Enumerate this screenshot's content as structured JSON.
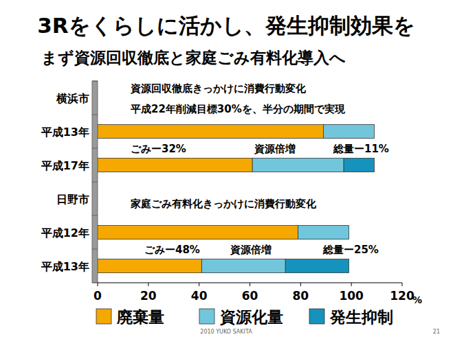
{
  "chart_data": {
    "type": "bar",
    "orientation": "horizontal",
    "stacked": true,
    "title": "3Rをくらしに活かし、発生抑制効果を",
    "subtitle": "まず資源回収徹底と家庭ごみ有料化導入へ",
    "categories": [
      "横浜市",
      "平成13年",
      "平成17年",
      "日野市",
      "平成12年",
      "平成13年"
    ],
    "series": [
      {
        "name": "廃棄量",
        "color": "#f5a800",
        "values": [
          null,
          89,
          61,
          null,
          79,
          41
        ]
      },
      {
        "name": "資源化量",
        "color": "#72c6dc",
        "values": [
          null,
          20,
          36,
          null,
          20,
          33
        ]
      },
      {
        "name": "発生抑制",
        "color": "#1693bd",
        "values": [
          null,
          null,
          12,
          null,
          null,
          25
        ]
      }
    ],
    "xlim": [
      0,
      120
    ],
    "xticks": [
      0,
      20,
      40,
      60,
      80,
      100,
      120
    ],
    "xlabel": "%",
    "grid": false,
    "legend": "bottom",
    "annotations": [
      "資源回収徹底きっかけに消費行動変化",
      "平成22年削減目標30%を、半分の期間で実現",
      "ごみー32%",
      "資源倍増",
      "総量ー11%",
      "家庭ごみ有料化きっかけに消費行動変化",
      "ごみー48%",
      "資源倍増",
      "総量ー25%"
    ]
  },
  "footer": {
    "credit": "2010 YUKO SAKITA",
    "page": "21"
  }
}
